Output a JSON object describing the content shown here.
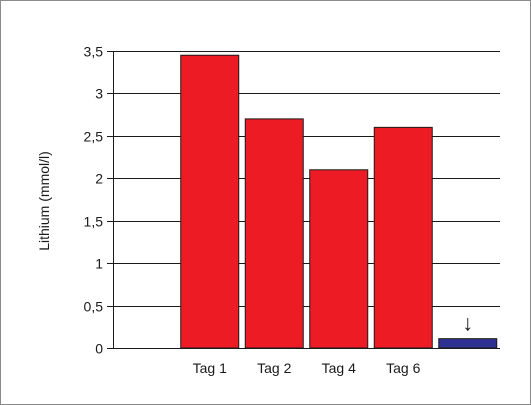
{
  "chart_data": {
    "type": "bar",
    "categories": [
      "",
      "Tag 1",
      "Tag 2",
      "Tag 4",
      "Tag 6",
      ""
    ],
    "values": [
      0,
      3.45,
      2.7,
      2.1,
      2.6,
      0.11
    ],
    "bar_colors": [
      "#ed1c24",
      "#ed1c24",
      "#ed1c24",
      "#ed1c24",
      "#ed1c24",
      "#2e3192"
    ],
    "ylabel": "Lithium (mmol/l)",
    "ylim": [
      0,
      3.5
    ],
    "yticks": [
      0,
      0.5,
      1,
      1.5,
      2,
      2.5,
      3,
      3.5
    ],
    "ytick_labels": [
      "0",
      "0,5",
      "1",
      "1,5",
      "2",
      "2,5",
      "3",
      "3,5"
    ],
    "grid": true,
    "annotations": [
      {
        "text": "↓",
        "category_index": 5
      }
    ]
  },
  "colors": {
    "bar": "#ed1c24",
    "bar_low": "#2e3192",
    "grid": "#1a1a1a",
    "frame": "#8a8a8a"
  }
}
